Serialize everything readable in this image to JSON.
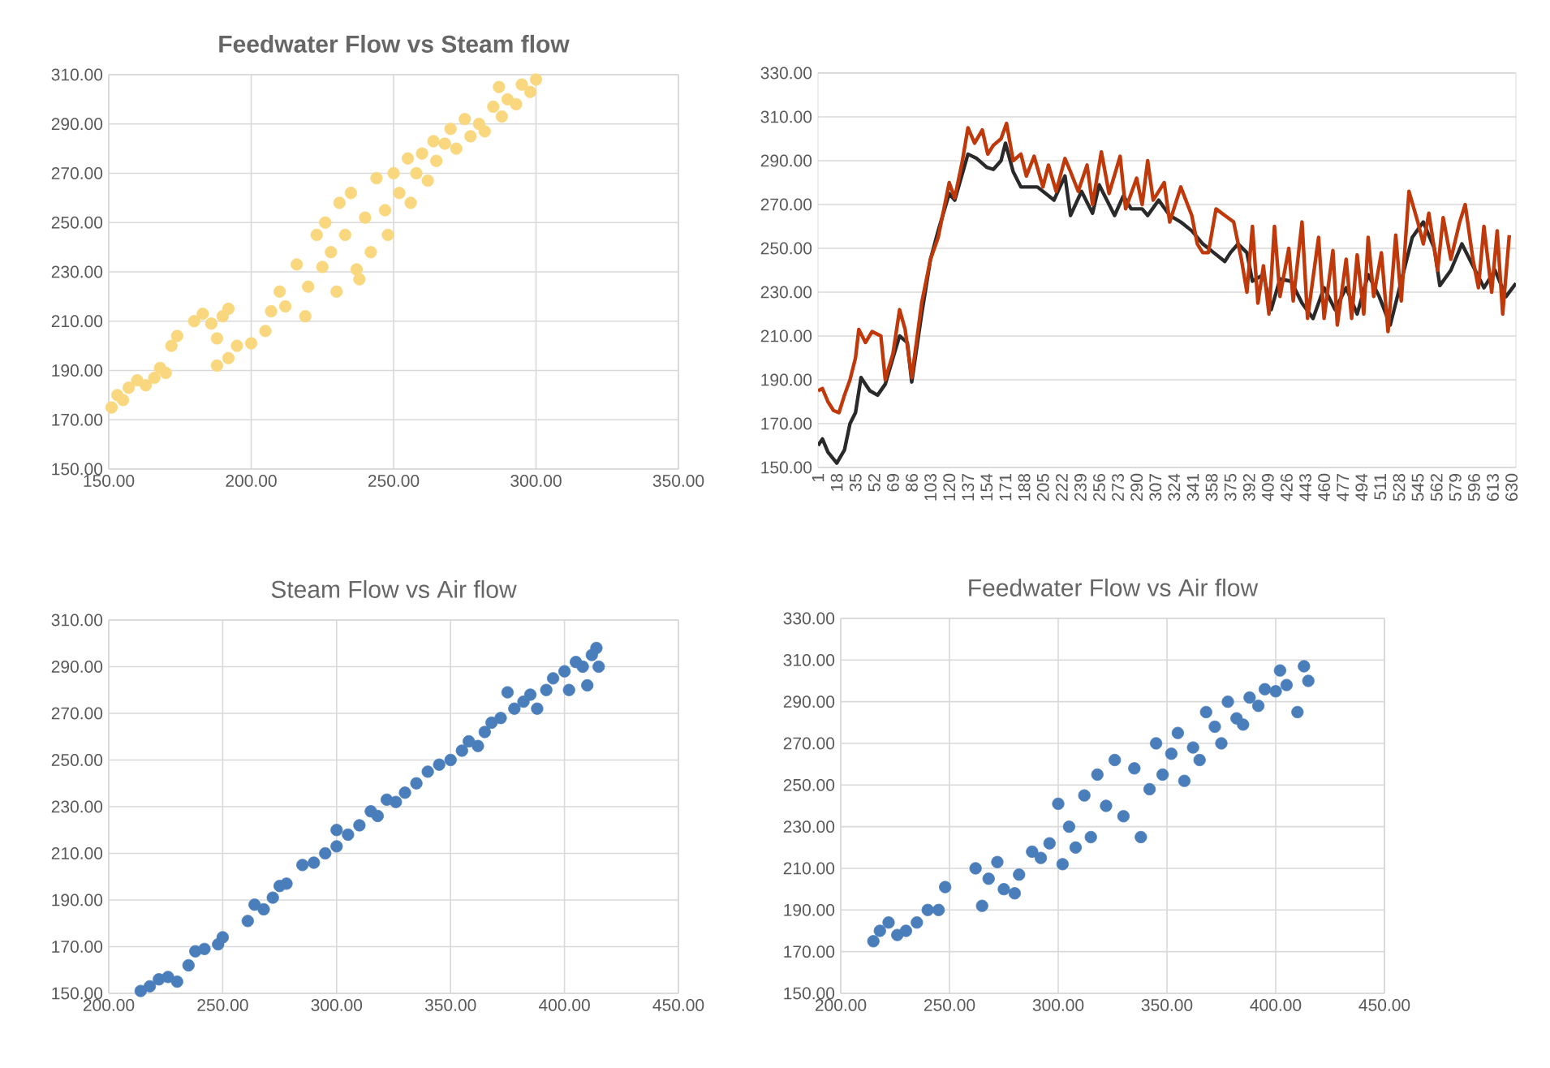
{
  "chart_data": [
    {
      "type": "scatter",
      "title": "Feedwater Flow vs Steam flow",
      "grid": true,
      "marker": "circle",
      "xlim": [
        150,
        350
      ],
      "ylim": [
        150,
        310
      ],
      "xticks": [
        {
          "value": 150,
          "label": "150.00"
        },
        {
          "value": 200,
          "label": "200.00"
        },
        {
          "value": 250,
          "label": "250.00"
        },
        {
          "value": 300,
          "label": "300.00"
        },
        {
          "value": 350,
          "label": "350.00"
        }
      ],
      "yticks": [
        {
          "value": 150,
          "label": "150.00"
        },
        {
          "value": 170,
          "label": "170.00"
        },
        {
          "value": 190,
          "label": "190.00"
        },
        {
          "value": 210,
          "label": "210.00"
        },
        {
          "value": 230,
          "label": "230.00"
        },
        {
          "value": 250,
          "label": "250.00"
        },
        {
          "value": 270,
          "label": "270.00"
        },
        {
          "value": 290,
          "label": "290.00"
        },
        {
          "value": 310,
          "label": "310.00"
        }
      ],
      "series": [
        {
          "color": "#f9d77e",
          "x": [
            151,
            153,
            155,
            157,
            160,
            163,
            166,
            168,
            170,
            172,
            174,
            180,
            183,
            186,
            188,
            190,
            192,
            188,
            192,
            195,
            200,
            205,
            207,
            210,
            212,
            216,
            219,
            220,
            223,
            225,
            226,
            228,
            230,
            231,
            233,
            235,
            237,
            238,
            240,
            242,
            244,
            247,
            248,
            250,
            252,
            255,
            256,
            258,
            260,
            262,
            264,
            265,
            268,
            270,
            272,
            275,
            277,
            280,
            282,
            285,
            287,
            288,
            290,
            293,
            295,
            298,
            300
          ],
          "values": [
            175,
            180,
            178,
            183,
            186,
            184,
            187,
            191,
            189,
            200,
            204,
            210,
            213,
            209,
            203,
            212,
            215,
            192,
            195,
            200,
            201,
            206,
            214,
            222,
            216,
            233,
            212,
            224,
            245,
            232,
            250,
            238,
            222,
            258,
            245,
            262,
            231,
            227,
            252,
            238,
            268,
            255,
            245,
            270,
            262,
            276,
            258,
            270,
            278,
            267,
            283,
            275,
            282,
            288,
            280,
            292,
            285,
            290,
            287,
            297,
            305,
            293,
            300,
            298,
            306,
            303,
            308
          ]
        }
      ]
    },
    {
      "type": "line",
      "grid": "y",
      "xlim": [
        1,
        634
      ],
      "ylim": [
        150,
        330
      ],
      "xticks": [
        1,
        18,
        35,
        52,
        69,
        86,
        103,
        120,
        137,
        154,
        171,
        188,
        205,
        222,
        239,
        256,
        273,
        290,
        307,
        324,
        341,
        358,
        375,
        392,
        409,
        426,
        443,
        460,
        477,
        494,
        511,
        528,
        545,
        562,
        579,
        596,
        613,
        630
      ],
      "yticks": [
        {
          "value": 150,
          "label": "150.00"
        },
        {
          "value": 170,
          "label": "170.00"
        },
        {
          "value": 190,
          "label": "190.00"
        },
        {
          "value": 210,
          "label": "210.00"
        },
        {
          "value": 230,
          "label": "230.00"
        },
        {
          "value": 250,
          "label": "250.00"
        },
        {
          "value": 270,
          "label": "270.00"
        },
        {
          "value": 290,
          "label": "290.00"
        },
        {
          "value": 310,
          "label": "310.00"
        },
        {
          "value": 330,
          "label": "330.00"
        }
      ],
      "series": [
        {
          "color": "#2a2a2a",
          "x": [
            1,
            5,
            10,
            18,
            25,
            30,
            35,
            40,
            48,
            55,
            62,
            69,
            75,
            82,
            86,
            95,
            103,
            110,
            120,
            125,
            137,
            145,
            154,
            160,
            167,
            171,
            178,
            185,
            200,
            215,
            225,
            230,
            240,
            250,
            256,
            265,
            270,
            278,
            285,
            295,
            300,
            310,
            320,
            330,
            340,
            350,
            360,
            370,
            375,
            382,
            390,
            395,
            405,
            412,
            420,
            430,
            440,
            450,
            460,
            470,
            480,
            490,
            500,
            510,
            520,
            530,
            540,
            550,
            560,
            565,
            575,
            585,
            595,
            605,
            615,
            625,
            634
          ],
          "values": [
            160,
            163,
            157,
            152,
            158,
            170,
            175,
            191,
            185,
            183,
            188,
            200,
            210,
            207,
            189,
            220,
            245,
            258,
            275,
            272,
            293,
            291,
            287,
            286,
            290,
            298,
            285,
            278,
            278,
            272,
            283,
            265,
            276,
            266,
            279,
            270,
            265,
            274,
            268,
            268,
            265,
            272,
            265,
            262,
            258,
            252,
            248,
            244,
            248,
            252,
            248,
            235,
            238,
            222,
            236,
            235,
            225,
            218,
            232,
            222,
            232,
            220,
            238,
            228,
            215,
            235,
            255,
            262,
            250,
            233,
            240,
            252,
            242,
            232,
            240,
            228,
            234
          ]
        },
        {
          "color": "#c0390b",
          "x": [
            1,
            5,
            10,
            15,
            20,
            25,
            30,
            35,
            38,
            44,
            50,
            58,
            62,
            69,
            75,
            80,
            86,
            95,
            103,
            110,
            120,
            125,
            132,
            137,
            143,
            150,
            155,
            160,
            167,
            172,
            178,
            185,
            190,
            197,
            205,
            210,
            217,
            225,
            230,
            237,
            245,
            250,
            258,
            265,
            275,
            280,
            290,
            295,
            300,
            305,
            315,
            320,
            330,
            340,
            345,
            350,
            355,
            362,
            370,
            378,
            385,
            390,
            395,
            400,
            405,
            410,
            415,
            420,
            428,
            432,
            440,
            445,
            455,
            460,
            468,
            472,
            480,
            485,
            490,
            496,
            500,
            505,
            512,
            518,
            525,
            530,
            537,
            545,
            550,
            555,
            563,
            568,
            575,
            583,
            588,
            595,
            600,
            605,
            612,
            617,
            622,
            628
          ],
          "values": [
            185,
            186,
            180,
            176,
            175,
            183,
            190,
            200,
            213,
            207,
            212,
            210,
            190,
            202,
            222,
            213,
            191,
            225,
            245,
            255,
            280,
            273,
            290,
            305,
            298,
            304,
            293,
            297,
            300,
            307,
            290,
            293,
            283,
            292,
            278,
            288,
            276,
            291,
            285,
            276,
            288,
            270,
            294,
            275,
            292,
            268,
            282,
            270,
            290,
            272,
            280,
            262,
            278,
            265,
            252,
            248,
            248,
            268,
            265,
            262,
            245,
            230,
            260,
            225,
            242,
            220,
            260,
            228,
            250,
            226,
            262,
            218,
            255,
            218,
            249,
            215,
            245,
            218,
            247,
            220,
            255,
            228,
            248,
            212,
            256,
            226,
            276,
            262,
            252,
            266,
            240,
            264,
            245,
            262,
            270,
            245,
            232,
            260,
            230,
            258,
            220,
            256
          ]
        }
      ]
    },
    {
      "type": "scatter",
      "title": "Steam Flow vs Air flow",
      "grid": true,
      "marker": "circle",
      "xlim": [
        200,
        450
      ],
      "ylim": [
        150,
        310
      ],
      "xticks": [
        {
          "value": 200,
          "label": "200.00"
        },
        {
          "value": 250,
          "label": "250.00"
        },
        {
          "value": 300,
          "label": "300.00"
        },
        {
          "value": 350,
          "label": "350.00"
        },
        {
          "value": 400,
          "label": "400.00"
        },
        {
          "value": 450,
          "label": "450.00"
        }
      ],
      "yticks": [
        {
          "value": 150,
          "label": "150.00"
        },
        {
          "value": 170,
          "label": "170.00"
        },
        {
          "value": 190,
          "label": "190.00"
        },
        {
          "value": 210,
          "label": "210.00"
        },
        {
          "value": 230,
          "label": "230.00"
        },
        {
          "value": 250,
          "label": "250.00"
        },
        {
          "value": 270,
          "label": "270.00"
        },
        {
          "value": 290,
          "label": "290.00"
        },
        {
          "value": 310,
          "label": "310.00"
        }
      ],
      "series": [
        {
          "color": "#4a7ebb",
          "x": [
            214,
            218,
            222,
            226,
            230,
            235,
            238,
            242,
            248,
            250,
            261,
            264,
            268,
            272,
            275,
            278,
            285,
            290,
            295,
            300,
            300,
            305,
            310,
            315,
            318,
            322,
            326,
            330,
            335,
            340,
            345,
            350,
            355,
            358,
            362,
            365,
            368,
            372,
            375,
            378,
            382,
            385,
            388,
            392,
            395,
            400,
            402,
            405,
            408,
            410,
            412,
            414,
            415
          ],
          "values": [
            151,
            153,
            156,
            157,
            155,
            162,
            168,
            169,
            171,
            174,
            181,
            188,
            186,
            191,
            196,
            197,
            205,
            206,
            210,
            213,
            220,
            218,
            222,
            228,
            226,
            233,
            232,
            236,
            240,
            245,
            248,
            250,
            254,
            258,
            256,
            262,
            266,
            268,
            279,
            272,
            275,
            278,
            272,
            280,
            285,
            288,
            280,
            292,
            290,
            282,
            295,
            298,
            290
          ]
        }
      ]
    },
    {
      "type": "scatter",
      "title": "Feedwater Flow vs Air flow",
      "grid": true,
      "marker": "circle",
      "xlim": [
        200,
        450
      ],
      "ylim": [
        150,
        330
      ],
      "xticks": [
        {
          "value": 200,
          "label": "200.00"
        },
        {
          "value": 250,
          "label": "250.00"
        },
        {
          "value": 300,
          "label": "300.00"
        },
        {
          "value": 350,
          "label": "350.00"
        },
        {
          "value": 400,
          "label": "400.00"
        },
        {
          "value": 450,
          "label": "450.00"
        }
      ],
      "yticks": [
        {
          "value": 150,
          "label": "150.00"
        },
        {
          "value": 170,
          "label": "170.00"
        },
        {
          "value": 190,
          "label": "190.00"
        },
        {
          "value": 210,
          "label": "210.00"
        },
        {
          "value": 230,
          "label": "230.00"
        },
        {
          "value": 250,
          "label": "250.00"
        },
        {
          "value": 270,
          "label": "270.00"
        },
        {
          "value": 290,
          "label": "290.00"
        },
        {
          "value": 310,
          "label": "310.00"
        },
        {
          "value": 330,
          "label": "330.00"
        }
      ],
      "series": [
        {
          "color": "#4a7ebb",
          "x": [
            215,
            218,
            222,
            226,
            230,
            235,
            240,
            245,
            248,
            262,
            265,
            268,
            272,
            275,
            280,
            282,
            288,
            292,
            296,
            300,
            302,
            305,
            308,
            312,
            315,
            318,
            322,
            326,
            330,
            335,
            338,
            342,
            345,
            348,
            352,
            355,
            358,
            362,
            365,
            368,
            372,
            375,
            378,
            382,
            385,
            388,
            392,
            395,
            400,
            402,
            405,
            410,
            413,
            415
          ],
          "values": [
            175,
            180,
            184,
            178,
            180,
            184,
            190,
            190,
            201,
            210,
            192,
            205,
            213,
            200,
            198,
            207,
            218,
            215,
            222,
            241,
            212,
            230,
            220,
            245,
            225,
            255,
            240,
            262,
            235,
            258,
            225,
            248,
            270,
            255,
            265,
            275,
            252,
            268,
            262,
            285,
            278,
            270,
            290,
            282,
            279,
            292,
            288,
            296,
            295,
            305,
            298,
            285,
            307,
            300
          ]
        }
      ]
    }
  ]
}
